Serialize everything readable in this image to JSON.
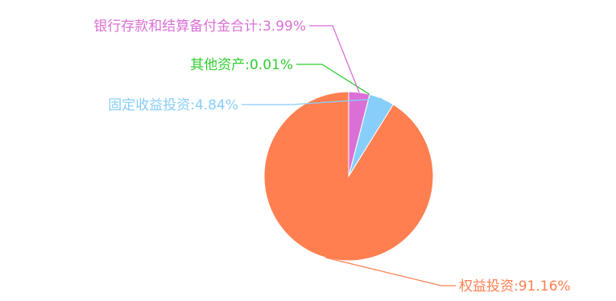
{
  "chart_data": {
    "type": "pie",
    "start": "top",
    "direction": "counterclockwise",
    "slices": [
      {
        "label": "权益投资",
        "value": 91.16,
        "value_text": "91.16%",
        "color": "#FF7F50"
      },
      {
        "label": "固定收益投资",
        "value": 4.84,
        "value_text": "4.84%",
        "color": "#87CEFA"
      },
      {
        "label": "其他资产",
        "value": 0.01,
        "value_text": "0.01%",
        "color": "#32CD32"
      },
      {
        "label": "银行存款和结算备付金合计",
        "value": 3.99,
        "value_text": "3.99%",
        "color": "#DA70D6"
      }
    ]
  }
}
